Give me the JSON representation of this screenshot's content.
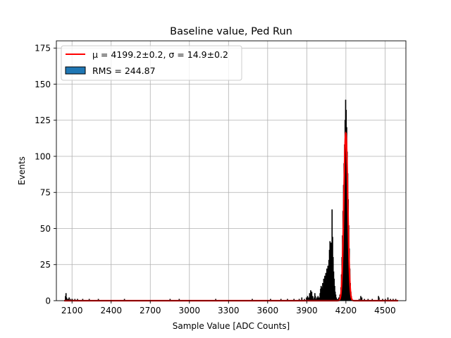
{
  "chart_data": {
    "type": "histogram",
    "title": "Baseline value, Ped Run",
    "xlabel": "Sample Value [ADC Counts]",
    "ylabel": "Events",
    "xlim": [
      1980,
      4660
    ],
    "ylim": [
      0,
      180
    ],
    "xticks": [
      2100,
      2400,
      2700,
      3000,
      3300,
      3600,
      3900,
      4200,
      4500
    ],
    "yticks": [
      0,
      25,
      50,
      75,
      100,
      125,
      150,
      175
    ],
    "grid": true,
    "legend_position": "top-left",
    "legend": {
      "fit_label": "μ = 4199.2±0.2, σ = 14.9±0.2",
      "hist_label": "RMS = 244.87"
    },
    "histogram": {
      "bin_width": 4,
      "x_range": [
        2040,
        4600
      ],
      "bars": [
        [
          2048,
          3
        ],
        [
          2052,
          5
        ],
        [
          2056,
          2
        ],
        [
          2060,
          1
        ],
        [
          2068,
          1
        ],
        [
          2076,
          2
        ],
        [
          2088,
          1
        ],
        [
          2100,
          1
        ],
        [
          2120,
          1
        ],
        [
          2140,
          1
        ],
        [
          2180,
          1
        ],
        [
          2230,
          1
        ],
        [
          2300,
          1
        ],
        [
          2500,
          1
        ],
        [
          2850,
          1
        ],
        [
          2920,
          1
        ],
        [
          3200,
          1
        ],
        [
          3480,
          1
        ],
        [
          3620,
          1
        ],
        [
          3700,
          1
        ],
        [
          3750,
          1
        ],
        [
          3800,
          1
        ],
        [
          3840,
          1
        ],
        [
          3860,
          2
        ],
        [
          3880,
          1
        ],
        [
          3896,
          2
        ],
        [
          3904,
          3
        ],
        [
          3912,
          2
        ],
        [
          3920,
          5
        ],
        [
          3924,
          3
        ],
        [
          3928,
          7
        ],
        [
          3932,
          4
        ],
        [
          3936,
          6
        ],
        [
          3940,
          2
        ],
        [
          3944,
          3
        ],
        [
          3948,
          1
        ],
        [
          3956,
          2
        ],
        [
          3960,
          5
        ],
        [
          3964,
          3
        ],
        [
          3968,
          1
        ],
        [
          3976,
          2
        ],
        [
          3984,
          3
        ],
        [
          3988,
          1
        ],
        [
          3992,
          2
        ],
        [
          4000,
          5
        ],
        [
          4004,
          8
        ],
        [
          4008,
          10
        ],
        [
          4012,
          6
        ],
        [
          4016,
          9
        ],
        [
          4020,
          12
        ],
        [
          4024,
          8
        ],
        [
          4028,
          15
        ],
        [
          4032,
          11
        ],
        [
          4036,
          17
        ],
        [
          4040,
          14
        ],
        [
          4044,
          19
        ],
        [
          4048,
          13
        ],
        [
          4052,
          22
        ],
        [
          4056,
          18
        ],
        [
          4060,
          24
        ],
        [
          4064,
          20
        ],
        [
          4068,
          28
        ],
        [
          4072,
          35
        ],
        [
          4076,
          41
        ],
        [
          4080,
          27
        ],
        [
          4084,
          40
        ],
        [
          4088,
          31
        ],
        [
          4092,
          63
        ],
        [
          4096,
          44
        ],
        [
          4100,
          30
        ],
        [
          4104,
          20
        ],
        [
          4108,
          15
        ],
        [
          4112,
          10
        ],
        [
          4116,
          6
        ],
        [
          4120,
          4
        ],
        [
          4124,
          2
        ],
        [
          4128,
          1
        ],
        [
          4136,
          1
        ],
        [
          4144,
          2
        ],
        [
          4152,
          4
        ],
        [
          4160,
          9
        ],
        [
          4164,
          18
        ],
        [
          4168,
          30
        ],
        [
          4172,
          45
        ],
        [
          4176,
          62
        ],
        [
          4180,
          80
        ],
        [
          4184,
          95
        ],
        [
          4188,
          108
        ],
        [
          4192,
          125
        ],
        [
          4196,
          139
        ],
        [
          4200,
          132
        ],
        [
          4204,
          120
        ],
        [
          4208,
          103
        ],
        [
          4212,
          88
        ],
        [
          4216,
          70
        ],
        [
          4220,
          52
        ],
        [
          4224,
          36
        ],
        [
          4228,
          22
        ],
        [
          4232,
          12
        ],
        [
          4236,
          6
        ],
        [
          4240,
          3
        ],
        [
          4244,
          1
        ],
        [
          4300,
          1
        ],
        [
          4312,
          3
        ],
        [
          4320,
          2
        ],
        [
          4340,
          1
        ],
        [
          4368,
          1
        ],
        [
          4400,
          1
        ],
        [
          4448,
          3
        ],
        [
          4452,
          2
        ],
        [
          4480,
          1
        ],
        [
          4500,
          1
        ],
        [
          4520,
          2
        ],
        [
          4540,
          1
        ],
        [
          4560,
          1
        ],
        [
          4580,
          1
        ]
      ]
    },
    "fit": {
      "type": "gaussian",
      "mu": 4199.2,
      "sigma": 14.9,
      "amplitude": 116,
      "x_range": [
        2040,
        4600
      ],
      "color": "#ff0000"
    },
    "colors": {
      "bar_fill": "#1f77b4",
      "bar_edge": "#000000",
      "grid": "#b0b0b0"
    }
  }
}
